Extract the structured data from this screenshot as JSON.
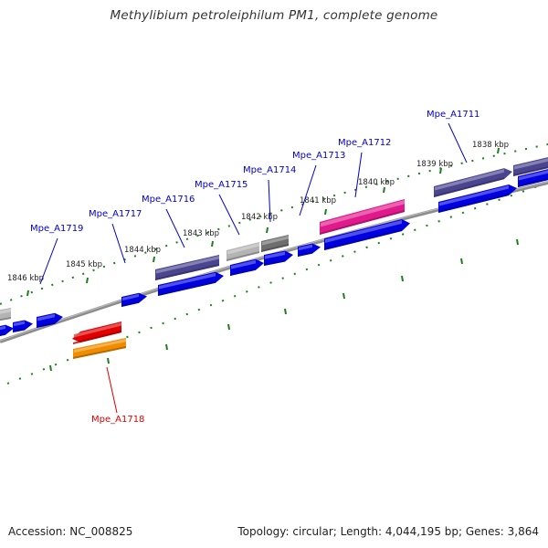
{
  "title": "Methylibium petroleiphilum PM1, complete genome",
  "footer": {
    "accession": "Accession: NC_008825",
    "summary": "Topology: circular; Length: 4,044,195 bp; Genes: 3,864"
  },
  "colors": {
    "backbone": "#8c8c8c",
    "tick": "#1e7d1e",
    "gene_label": "#0000cc",
    "highlight_label": "#dd0000",
    "cds": "#0000e0",
    "annotated": "#4b4590",
    "rna": "#e0198c",
    "pseudo_light": "#b4b4b4",
    "pseudo_dark": "#6e6e6e",
    "selected_cds": "#e00000",
    "selected_feature": "#f08c00"
  },
  "ticks": [
    "1846 kbp",
    "1845 kbp",
    "1844 kbp",
    "1843 kbp",
    "1842 kbp",
    "1841 kbp",
    "1840 kbp",
    "1839 kbp",
    "1838 kbp"
  ],
  "genes": [
    {
      "label": "Mpe_A1711",
      "highlight": false
    },
    {
      "label": "Mpe_A1712",
      "highlight": false
    },
    {
      "label": "Mpe_A1713",
      "highlight": false
    },
    {
      "label": "Mpe_A1714",
      "highlight": false
    },
    {
      "label": "Mpe_A1715",
      "highlight": false
    },
    {
      "label": "Mpe_A1716",
      "highlight": false
    },
    {
      "label": "Mpe_A1717",
      "highlight": false
    },
    {
      "label": "Mpe_A1718",
      "highlight": true
    },
    {
      "label": "Mpe_A1719",
      "highlight": false
    }
  ]
}
